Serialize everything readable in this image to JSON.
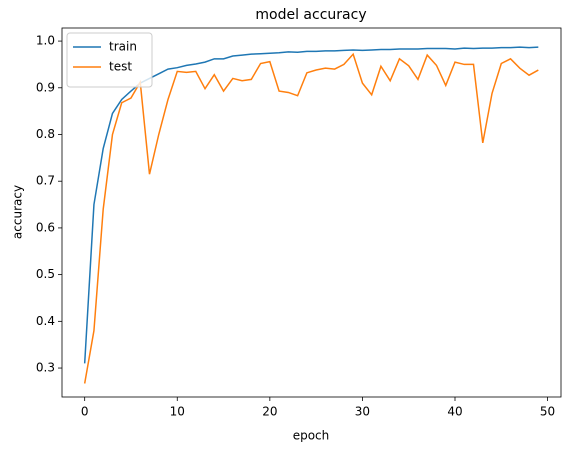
{
  "chart_data": {
    "type": "line",
    "title": "model accuracy",
    "xlabel": "epoch",
    "ylabel": "accuracy",
    "x": [
      0,
      1,
      2,
      3,
      4,
      5,
      6,
      7,
      8,
      9,
      10,
      11,
      12,
      13,
      14,
      15,
      16,
      17,
      18,
      19,
      20,
      21,
      22,
      23,
      24,
      25,
      26,
      27,
      28,
      29,
      30,
      31,
      32,
      33,
      34,
      35,
      36,
      37,
      38,
      39,
      40,
      41,
      42,
      43,
      44,
      45,
      46,
      47,
      48,
      49
    ],
    "series": [
      {
        "name": "train",
        "color": "#1f77b4",
        "values": [
          0.31,
          0.65,
          0.77,
          0.845,
          0.875,
          0.893,
          0.91,
          0.92,
          0.93,
          0.94,
          0.943,
          0.948,
          0.951,
          0.955,
          0.962,
          0.962,
          0.968,
          0.97,
          0.972,
          0.973,
          0.974,
          0.975,
          0.977,
          0.976,
          0.978,
          0.978,
          0.979,
          0.979,
          0.98,
          0.981,
          0.98,
          0.981,
          0.982,
          0.982,
          0.983,
          0.983,
          0.983,
          0.984,
          0.984,
          0.984,
          0.983,
          0.985,
          0.984,
          0.985,
          0.985,
          0.986,
          0.986,
          0.987,
          0.986,
          0.987
        ]
      },
      {
        "name": "test",
        "color": "#ff7f0e",
        "values": [
          0.267,
          0.38,
          0.64,
          0.8,
          0.868,
          0.878,
          0.912,
          0.715,
          0.8,
          0.875,
          0.935,
          0.933,
          0.935,
          0.898,
          0.928,
          0.893,
          0.92,
          0.915,
          0.918,
          0.952,
          0.956,
          0.893,
          0.89,
          0.883,
          0.932,
          0.938,
          0.942,
          0.94,
          0.95,
          0.972,
          0.91,
          0.885,
          0.946,
          0.915,
          0.962,
          0.947,
          0.918,
          0.97,
          0.948,
          0.905,
          0.955,
          0.95,
          0.95,
          0.782,
          0.888,
          0.952,
          0.962,
          0.942,
          0.927,
          0.938
        ]
      }
    ],
    "xlim": [
      -2.45,
      51.45
    ],
    "xticks": [
      0,
      10,
      20,
      30,
      40,
      50
    ],
    "ylim": [
      0.238,
      1.028
    ],
    "yticks": [
      0.3,
      0.4,
      0.5,
      0.6,
      0.7,
      0.8,
      0.9,
      {
        "value": 1,
        "label": "1.0"
      }
    ],
    "legend": "upper left"
  }
}
